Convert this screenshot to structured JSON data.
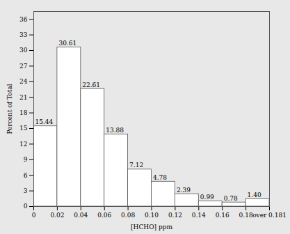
{
  "chart_data": {
    "type": "histogram",
    "xlabel": "[HCHO] ppm",
    "ylabel": "Percent of Total",
    "bins": [
      "0",
      "0.02",
      "0.04",
      "0.06",
      "0.08",
      "0.10",
      "0.12",
      "0.14",
      "0.16",
      "0.18",
      "over 0.181"
    ],
    "values": [
      15.44,
      30.61,
      22.61,
      13.88,
      7.12,
      4.78,
      2.39,
      0.99,
      0.78,
      1.4
    ],
    "value_labels": [
      "15.44",
      "30.61",
      "22.61",
      "13.88",
      "7.12",
      "4.78",
      "2.39",
      "0.99",
      "0.78",
      "1.40"
    ],
    "data_labels": true,
    "color": "#ffffff",
    "ylim": [
      0,
      37.5
    ],
    "yticks": [
      0,
      3,
      6,
      9,
      12,
      15,
      18,
      21,
      24,
      27,
      30,
      33,
      36
    ],
    "grid": false
  }
}
